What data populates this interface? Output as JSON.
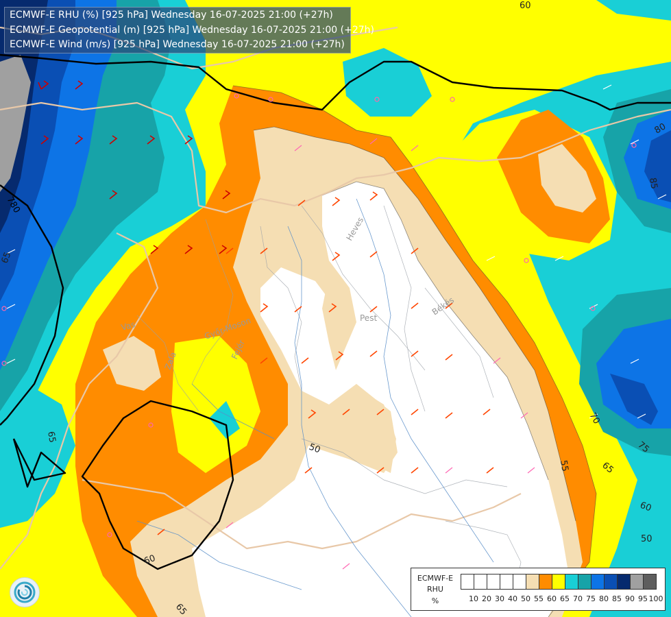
{
  "titles": [
    "ECMWF-E RHU (%) [925 hPa] Wednesday 16-07-2025 21:00 (+27h)",
    "ECMWF-E Geopotential (m) [925 hPa] Wednesday 16-07-2025 21:00 (+27h)",
    "ECMWF-E Wind (m/s) [925 hPa] Wednesday 16-07-2025 21:00 (+27h)"
  ],
  "legend": {
    "title": [
      "ECMWF-E",
      "RHU",
      "%"
    ],
    "ticks": [
      "10",
      "20",
      "30",
      "40",
      "50",
      "55",
      "60",
      "65",
      "70",
      "75",
      "80",
      "85",
      "90",
      "95",
      "100"
    ],
    "colors": [
      "#ffffff",
      "#ffffff",
      "#ffffff",
      "#ffffff",
      "#ffffff",
      "#f5deb3",
      "#ff8c00",
      "#ffff00",
      "#19cfd6",
      "#17a3a8",
      "#0d74e6",
      "#0a4fb4",
      "#062a6e",
      "#a0a0a0",
      "#5e5e5e"
    ]
  },
  "contour_labels": {
    "rhu": [
      "60",
      "80",
      "85",
      "65",
      "75",
      "70",
      "65",
      "55",
      "60",
      "50",
      "50",
      "60",
      "65",
      "65"
    ],
    "geopotential": [
      "780",
      "780"
    ]
  },
  "region_labels": [
    "Heves",
    "Pest",
    "Békés",
    "Vas",
    "Zala",
    "Győr-Moson",
    "Fejér"
  ],
  "logo": "ecmwf-logo-icon"
}
